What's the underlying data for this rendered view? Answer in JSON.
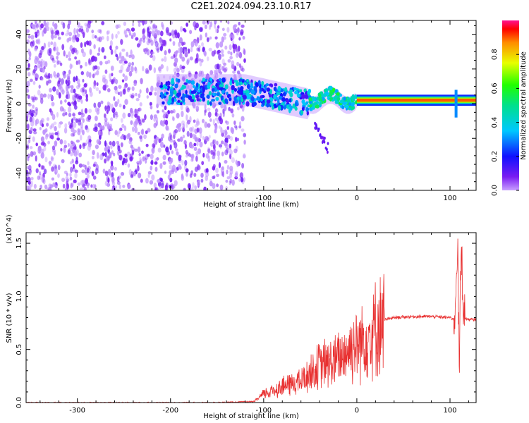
{
  "title": "C2E1.2024.094.23.10.R17",
  "colors": {
    "spectrum_low": "#7a1cf2",
    "spectrum_high": "#ff0000",
    "snr_line": "#e83030"
  },
  "chart_data": [
    {
      "type": "heatmap",
      "xlabel": "Height of straight line (km)",
      "ylabel": "Frequency (Hz)",
      "xlim": [
        -355,
        128
      ],
      "ylim": [
        -50,
        48
      ],
      "xticks": [
        -300,
        -200,
        -100,
        0,
        100
      ],
      "yticks": [
        -40,
        -20,
        0,
        20,
        40
      ],
      "colorbar": {
        "label": "Normalized spectral amplitude",
        "range": [
          0.0,
          1.0
        ],
        "ticks": [
          "0.0",
          "0.2",
          "0.4",
          "0.6",
          "0.8"
        ],
        "colormap": "rainbow (violet low → red high)"
      },
      "features": [
        {
          "x_range": [
            -355,
            -120
          ],
          "freq_range": [
            -50,
            48
          ],
          "amplitude": 0.05,
          "description_kind": "diffuse noise"
        },
        {
          "x_range": [
            -210,
            -50
          ],
          "freq_center": 7,
          "amplitude": 0.3
        },
        {
          "x_range": [
            -50,
            0
          ],
          "freq_center": 3,
          "amplitude": 0.45
        },
        {
          "x_range": [
            0,
            128
          ],
          "freq_center": 2,
          "amplitude": 0.95
        }
      ]
    },
    {
      "type": "line",
      "xlabel": "Height of straight line (km)",
      "ylabel": "SNR (10 * v/v)",
      "yscale_label": "(x10^4)",
      "xlim": [
        -355,
        128
      ],
      "ylim": [
        0.0,
        1.6
      ],
      "xticks": [
        -300,
        -200,
        -100,
        0,
        100
      ],
      "yticks": [
        "0.0",
        "0.5",
        "1.0",
        "1.5"
      ],
      "series": [
        {
          "x": [
            -355,
            -250,
            -150,
            -110,
            -100,
            -80,
            -60,
            -40,
            -20,
            -10,
            0,
            10,
            20,
            30,
            40,
            60,
            80,
            100,
            105,
            108,
            110,
            112,
            115,
            120,
            128
          ],
          "y": [
            0.0,
            0.0,
            0.0,
            0.01,
            0.08,
            0.15,
            0.2,
            0.35,
            0.4,
            0.5,
            0.55,
            0.62,
            0.7,
            0.78,
            0.8,
            0.81,
            0.81,
            0.8,
            0.78,
            1.55,
            0.3,
            1.5,
            0.8,
            0.78,
            0.78
          ]
        }
      ]
    }
  ]
}
